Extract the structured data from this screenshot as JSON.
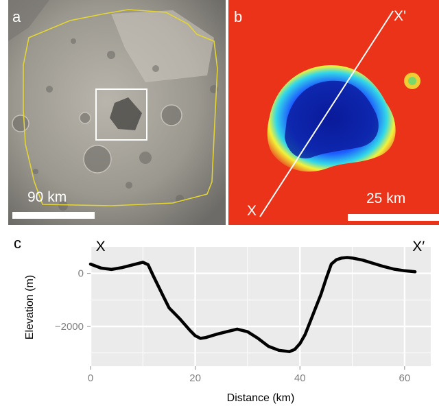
{
  "panels": {
    "a": {
      "letter": "a",
      "scale_label": "90 km"
    },
    "b": {
      "letter": "b",
      "start_label": "X",
      "end_label": "X'",
      "scale_label": "25 km"
    },
    "c": {
      "letter": "c"
    }
  },
  "colors": {
    "outline": "#e4d532",
    "profile_line": "#000000",
    "plot_bg": "#ebebeb",
    "grid": "#ffffff",
    "high_terrain": "#e8261a",
    "low_terrain": "#0a1a9a"
  },
  "chart_data": {
    "type": "line",
    "title": "",
    "xlabel": "Distance (km)",
    "ylabel": "Elevation (m)",
    "xlim": [
      0,
      65
    ],
    "ylim": [
      -3500,
      1000
    ],
    "xticks": [
      0,
      20,
      40,
      60
    ],
    "yticks": [
      0,
      -2000
    ],
    "ytick_labels": [
      "0",
      "−2000"
    ],
    "grid": true,
    "annotations": [
      {
        "text": "X",
        "x": 1,
        "y": 850
      },
      {
        "text": "X′",
        "x": 61.5,
        "y": 850
      }
    ],
    "series": [
      {
        "x": [
          0,
          2,
          4,
          6,
          8,
          10,
          11,
          12,
          14,
          15,
          17,
          19,
          20,
          21,
          22,
          24,
          26,
          28,
          30,
          32,
          34,
          36,
          38,
          39,
          40,
          41,
          42,
          43,
          44,
          45,
          46,
          47,
          48,
          49,
          50,
          52,
          54,
          56,
          58,
          60,
          62
        ],
        "y": [
          350,
          200,
          150,
          220,
          320,
          420,
          330,
          -100,
          -900,
          -1300,
          -1700,
          -2150,
          -2350,
          -2450,
          -2420,
          -2300,
          -2200,
          -2100,
          -2200,
          -2450,
          -2750,
          -2900,
          -2950,
          -2870,
          -2650,
          -2300,
          -1800,
          -1300,
          -800,
          -200,
          350,
          520,
          580,
          600,
          580,
          500,
          380,
          260,
          160,
          100,
          60
        ]
      }
    ]
  }
}
